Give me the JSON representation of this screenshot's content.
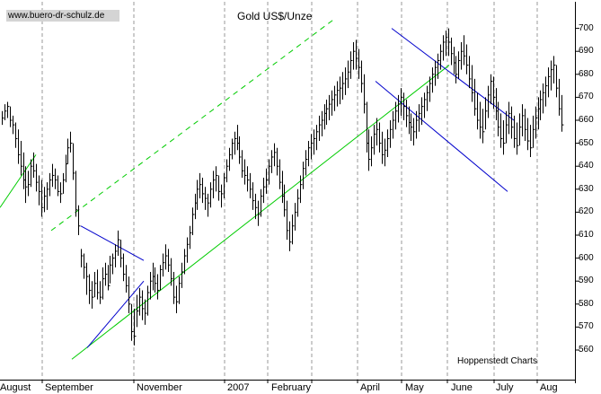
{
  "header": {
    "watermark": "www.buero-dr-schulz.de",
    "source_label": "Hoppenstedt Charts"
  },
  "chart_data": {
    "type": "line",
    "style": "high-low-close bars",
    "title": "Gold US$/Unze",
    "xlabel": "",
    "ylabel": "",
    "ylim": [
      550,
      705
    ],
    "y_axis_side": "right",
    "y_ticks": [
      560,
      570,
      580,
      590,
      600,
      610,
      620,
      630,
      640,
      650,
      660,
      670,
      680,
      690,
      700
    ],
    "x_tick_labels": [
      "August",
      "September",
      "November",
      "2007",
      "February",
      "April",
      "May",
      "June",
      "July",
      "Aug"
    ],
    "grid": "vertical dashed at month boundaries",
    "colors": {
      "price": "#000000",
      "long_channel": "#00cc00",
      "short_channel": "#0000cc",
      "grid": "#9a9a9a"
    },
    "series": [
      {
        "values": [
          [
            664,
            658,
            661
          ],
          [
            667,
            660,
            664
          ],
          [
            668,
            661,
            666
          ],
          [
            666,
            657,
            660
          ],
          [
            662,
            654,
            658
          ],
          [
            659,
            648,
            652
          ],
          [
            656,
            641,
            645
          ],
          [
            651,
            636,
            640
          ],
          [
            646,
            630,
            634
          ],
          [
            640,
            624,
            631
          ],
          [
            638,
            627,
            632
          ],
          [
            643,
            631,
            640
          ],
          [
            646,
            635,
            638
          ],
          [
            641,
            629,
            633
          ],
          [
            636,
            623,
            629
          ],
          [
            634,
            618,
            622
          ],
          [
            631,
            620,
            627
          ],
          [
            633,
            621,
            630
          ],
          [
            637,
            627,
            634
          ],
          [
            641,
            631,
            636
          ],
          [
            639,
            630,
            634
          ],
          [
            636,
            627,
            629
          ],
          [
            633,
            624,
            628
          ],
          [
            637,
            628,
            634
          ],
          [
            645,
            633,
            641
          ],
          [
            652,
            641,
            648
          ],
          [
            655,
            646,
            650
          ],
          [
            650,
            634,
            637
          ],
          [
            638,
            618,
            621
          ],
          [
            623,
            610,
            614
          ],
          [
            604,
            596,
            601
          ],
          [
            602,
            591,
            596
          ],
          [
            598,
            584,
            592
          ],
          [
            593,
            580,
            586
          ],
          [
            590,
            578,
            583
          ],
          [
            594,
            583,
            589
          ],
          [
            595,
            582,
            585
          ],
          [
            590,
            580,
            583
          ],
          [
            596,
            582,
            591
          ],
          [
            598,
            588,
            593
          ],
          [
            597,
            586,
            588
          ],
          [
            601,
            589,
            597
          ],
          [
            602,
            593,
            600
          ],
          [
            606,
            596,
            603
          ],
          [
            612,
            601,
            608
          ],
          [
            608,
            596,
            600
          ],
          [
            602,
            590,
            593
          ],
          [
            597,
            585,
            588
          ],
          [
            592,
            576,
            580
          ],
          [
            580,
            564,
            568
          ],
          [
            578,
            562,
            566
          ],
          [
            584,
            570,
            577
          ],
          [
            587,
            575,
            583
          ],
          [
            586,
            573,
            578
          ],
          [
            582,
            571,
            576
          ],
          [
            588,
            575,
            585
          ],
          [
            594,
            582,
            590
          ],
          [
            598,
            586,
            592
          ],
          [
            596,
            585,
            589
          ],
          [
            593,
            582,
            586
          ],
          [
            597,
            586,
            595
          ],
          [
            602,
            592,
            598
          ],
          [
            606,
            595,
            601
          ],
          [
            604,
            594,
            597
          ],
          [
            600,
            588,
            591
          ],
          [
            594,
            580,
            583
          ],
          [
            588,
            576,
            581
          ],
          [
            592,
            580,
            589
          ],
          [
            598,
            587,
            594
          ],
          [
            604,
            593,
            601
          ],
          [
            609,
            598,
            606
          ],
          [
            614,
            604,
            611
          ],
          [
            622,
            610,
            619
          ],
          [
            628,
            617,
            624
          ],
          [
            634,
            621,
            630
          ],
          [
            637,
            626,
            632
          ],
          [
            635,
            624,
            628
          ],
          [
            631,
            621,
            626
          ],
          [
            628,
            618,
            624
          ],
          [
            633,
            622,
            630
          ],
          [
            638,
            626,
            634
          ],
          [
            640,
            629,
            636
          ],
          [
            636,
            625,
            629
          ],
          [
            632,
            622,
            628
          ],
          [
            637,
            626,
            635
          ],
          [
            643,
            633,
            640
          ],
          [
            648,
            638,
            645
          ],
          [
            652,
            643,
            650
          ],
          [
            655,
            645,
            652
          ],
          [
            658,
            647,
            650
          ],
          [
            653,
            641,
            644
          ],
          [
            647,
            635,
            638
          ],
          [
            643,
            632,
            636
          ],
          [
            640,
            629,
            634
          ],
          [
            637,
            626,
            630
          ],
          [
            633,
            621,
            625
          ],
          [
            628,
            617,
            622
          ],
          [
            625,
            614,
            619
          ],
          [
            630,
            618,
            627
          ],
          [
            635,
            624,
            631
          ],
          [
            639,
            628,
            634
          ],
          [
            643,
            632,
            640
          ],
          [
            647,
            637,
            644
          ],
          [
            650,
            640,
            646
          ],
          [
            648,
            636,
            640
          ],
          [
            643,
            630,
            633
          ],
          [
            638,
            624,
            627
          ],
          [
            632,
            618,
            621
          ],
          [
            625,
            608,
            612
          ],
          [
            616,
            603,
            607
          ],
          [
            619,
            606,
            614
          ],
          [
            624,
            612,
            620
          ],
          [
            630,
            618,
            626
          ],
          [
            636,
            624,
            632
          ],
          [
            642,
            630,
            639
          ],
          [
            647,
            636,
            643
          ],
          [
            651,
            640,
            648
          ],
          [
            654,
            643,
            650
          ],
          [
            656,
            645,
            652
          ],
          [
            658,
            647,
            655
          ],
          [
            662,
            651,
            658
          ],
          [
            664,
            653,
            660
          ],
          [
            667,
            656,
            663
          ],
          [
            669,
            658,
            665
          ],
          [
            671,
            660,
            667
          ],
          [
            673,
            662,
            669
          ],
          [
            675,
            664,
            671
          ],
          [
            677,
            666,
            673
          ],
          [
            679,
            667,
            674
          ],
          [
            681,
            669,
            676
          ],
          [
            683,
            671,
            678
          ],
          [
            686,
            674,
            681
          ],
          [
            690,
            678,
            686
          ],
          [
            694,
            682,
            690
          ],
          [
            695,
            682,
            687
          ],
          [
            691,
            678,
            683
          ],
          [
            686,
            672,
            676
          ],
          [
            680,
            663,
            667
          ],
          [
            668,
            646,
            650
          ],
          [
            656,
            638,
            643
          ],
          [
            653,
            640,
            648
          ],
          [
            658,
            645,
            654
          ],
          [
            661,
            649,
            656
          ],
          [
            659,
            646,
            650
          ],
          [
            655,
            641,
            645
          ],
          [
            652,
            640,
            647
          ],
          [
            656,
            644,
            652
          ],
          [
            660,
            648,
            656
          ],
          [
            664,
            652,
            660
          ],
          [
            668,
            656,
            664
          ],
          [
            671,
            659,
            667
          ],
          [
            674,
            662,
            670
          ],
          [
            672,
            660,
            666
          ],
          [
            669,
            657,
            662
          ],
          [
            666,
            654,
            659
          ],
          [
            663,
            651,
            657
          ],
          [
            661,
            649,
            655
          ],
          [
            664,
            652,
            660
          ],
          [
            667,
            655,
            663
          ],
          [
            670,
            658,
            666
          ],
          [
            672,
            661,
            669
          ],
          [
            675,
            664,
            672
          ],
          [
            679,
            668,
            676
          ],
          [
            683,
            672,
            680
          ],
          [
            686,
            675,
            683
          ],
          [
            689,
            678,
            686
          ],
          [
            693,
            682,
            690
          ],
          [
            697,
            686,
            694
          ],
          [
            699,
            688,
            696
          ],
          [
            700,
            688,
            694
          ],
          [
            696,
            684,
            689
          ],
          [
            692,
            680,
            685
          ],
          [
            688,
            676,
            680
          ],
          [
            690,
            678,
            686
          ],
          [
            694,
            682,
            690
          ],
          [
            697,
            684,
            688
          ],
          [
            693,
            680,
            684
          ],
          [
            688,
            674,
            678
          ],
          [
            684,
            668,
            672
          ],
          [
            678,
            662,
            665
          ],
          [
            672,
            656,
            660
          ],
          [
            668,
            652,
            657
          ],
          [
            665,
            650,
            655
          ],
          [
            670,
            656,
            664
          ],
          [
            675,
            661,
            671
          ],
          [
            680,
            667,
            677
          ],
          [
            679,
            665,
            670
          ],
          [
            674,
            660,
            664
          ],
          [
            668,
            653,
            657
          ],
          [
            663,
            648,
            652
          ],
          [
            660,
            645,
            650
          ],
          [
            664,
            650,
            658
          ],
          [
            668,
            654,
            663
          ],
          [
            666,
            652,
            657
          ],
          [
            662,
            648,
            652
          ],
          [
            659,
            645,
            649
          ],
          [
            663,
            649,
            657
          ],
          [
            667,
            653,
            662
          ],
          [
            665,
            651,
            656
          ],
          [
            661,
            647,
            651
          ],
          [
            658,
            644,
            648
          ],
          [
            662,
            648,
            656
          ],
          [
            666,
            652,
            661
          ],
          [
            670,
            656,
            665
          ],
          [
            673,
            660,
            669
          ],
          [
            676,
            663,
            672
          ],
          [
            679,
            666,
            675
          ],
          [
            683,
            670,
            679
          ],
          [
            686,
            673,
            682
          ],
          [
            688,
            676,
            684
          ],
          [
            684,
            670,
            674
          ],
          [
            678,
            662,
            665
          ],
          [
            671,
            655,
            658
          ]
        ]
      }
    ],
    "trendlines": [
      {
        "color": "#00cc00",
        "style": "solid"
      },
      {
        "color": "#00cc00",
        "style": "dashed"
      },
      {
        "color": "#00cc00",
        "style": "solid"
      },
      {
        "color": "#0000cc",
        "style": "solid"
      },
      {
        "color": "#0000cc",
        "style": "solid"
      },
      {
        "color": "#0000cc",
        "style": "solid"
      },
      {
        "color": "#0000cc",
        "style": "solid"
      }
    ]
  }
}
